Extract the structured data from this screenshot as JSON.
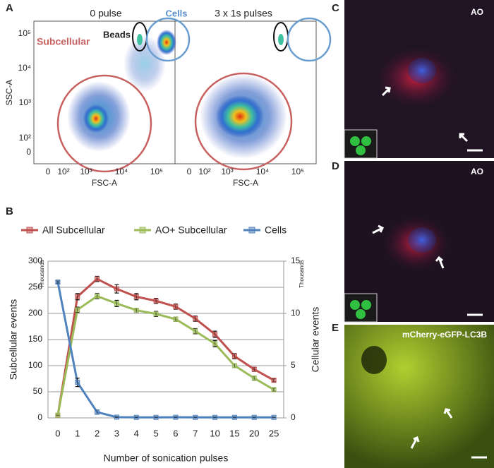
{
  "panel_a": {
    "label": "A",
    "plots": [
      {
        "title": "0 pulse"
      },
      {
        "title": "3 x 1s pulses"
      }
    ],
    "gates": {
      "beads": "Beads",
      "cells": "Cells",
      "subcellular": "Subcellular"
    },
    "y_axis_label": "SSC-A",
    "x_axis_label": "FSC-A",
    "y_tick_labels": [
      "10⁵",
      "10⁴",
      "10³",
      "10²",
      "0"
    ],
    "x_tick_labels": [
      "0",
      "10²",
      "10³",
      "10⁴",
      "10⁵"
    ]
  },
  "panel_b": {
    "label": "B"
  },
  "panel_c": {
    "label": "C",
    "stain": "AO"
  },
  "panel_d": {
    "label": "D",
    "stain": "AO"
  },
  "panel_e": {
    "label": "E",
    "stain": "mCherry-eGFP-LC3B"
  },
  "chart_data": {
    "type": "line",
    "legend": "top",
    "x_label": "Number of sonication pulses",
    "y_label": "Subcellular events",
    "y2_label": "Cellular events",
    "y_unit": "Thousands",
    "y2_unit": "Thousands",
    "categories": [
      "0",
      "1",
      "2",
      "3",
      "4",
      "5",
      "6",
      "7",
      "10",
      "15",
      "20",
      "25"
    ],
    "ylim": [
      0,
      300
    ],
    "yticks": [
      0,
      50,
      100,
      150,
      200,
      250,
      300
    ],
    "y2lim": [
      0,
      15
    ],
    "y2ticks": [
      0,
      5,
      10,
      15
    ],
    "grid": true,
    "series": [
      {
        "name": "All Subcellular",
        "color": "#c0504d",
        "values": [
          5,
          232,
          266,
          247,
          232,
          224,
          213,
          190,
          160,
          118,
          93,
          72
        ],
        "errors": [
          0,
          6,
          5,
          8,
          6,
          5,
          5,
          5,
          6,
          5,
          4,
          3
        ]
      },
      {
        "name": "AO+ Subcellular",
        "color": "#9bbb59",
        "values": [
          5,
          207,
          233,
          219,
          206,
          199,
          189,
          166,
          142,
          100,
          76,
          54
        ],
        "errors": [
          0,
          5,
          5,
          6,
          4,
          5,
          4,
          5,
          6,
          4,
          4,
          3
        ]
      },
      {
        "name": "Cells",
        "color": "#4f81bd",
        "axis": "y2",
        "values": [
          13,
          3.4,
          0.55,
          0.07,
          0.05,
          0.05,
          0.06,
          0.05,
          0.05,
          0.05,
          0.05,
          0.05
        ],
        "errors": [
          0.1,
          0.4,
          0.2,
          0.03,
          0.02,
          0.02,
          0.02,
          0.02,
          0.02,
          0.02,
          0.02,
          0.02
        ]
      }
    ]
  }
}
